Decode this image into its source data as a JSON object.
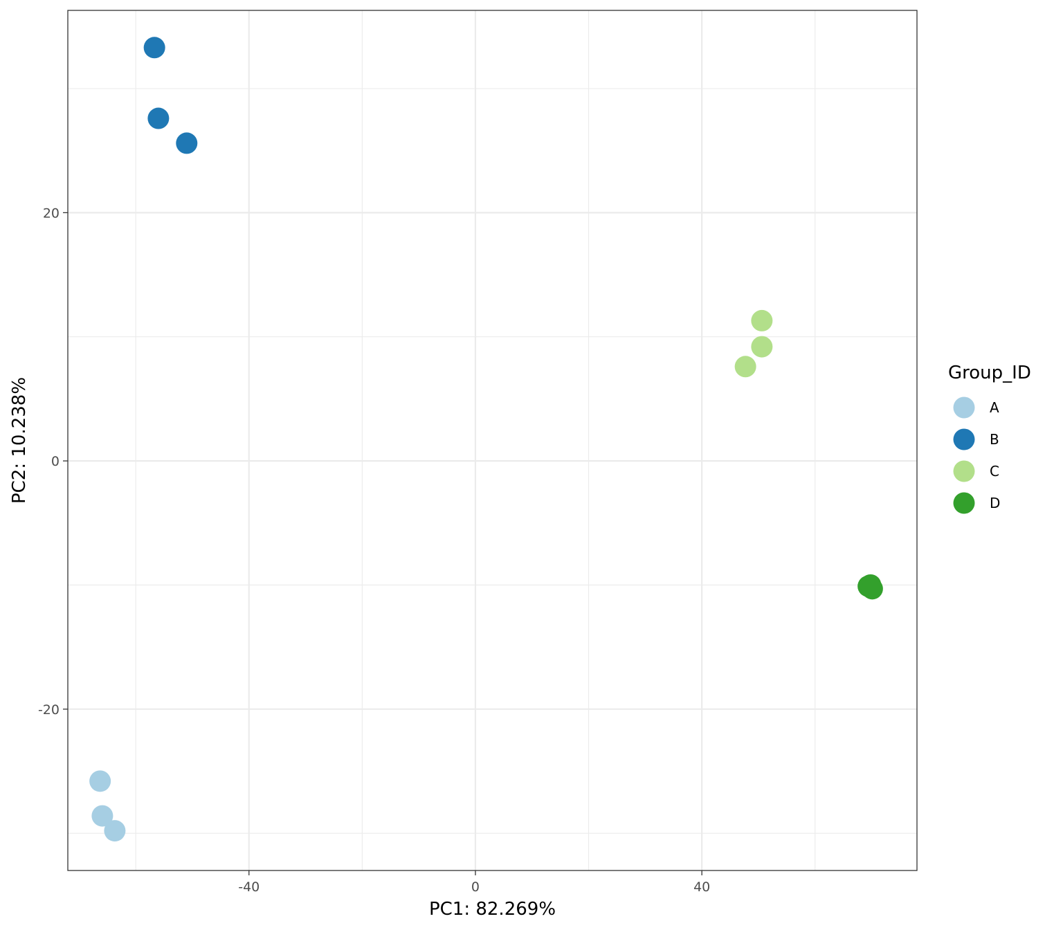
{
  "chart_data": {
    "type": "scatter",
    "xlabel": "PC1: 82.269%",
    "ylabel": "PC2: 10.238%",
    "xlim": [
      -72,
      78
    ],
    "ylim": [
      -33,
      36.3
    ],
    "x_ticks": [
      -40,
      0,
      40
    ],
    "x_tick_labels": [
      "-40",
      "0",
      "40"
    ],
    "y_ticks": [
      -20,
      0,
      20
    ],
    "y_tick_labels": [
      "-20",
      "0",
      "20"
    ],
    "x_minor_grid": [
      -60,
      -20,
      20,
      60
    ],
    "y_minor_grid": [
      -30,
      -10,
      10,
      30
    ],
    "grid": true,
    "legend": {
      "title": "Group_ID",
      "position": "right"
    },
    "series": [
      {
        "name": "A",
        "color": "#a6cee3",
        "points": [
          [
            -66.3,
            -25.8
          ],
          [
            -65.9,
            -28.6
          ],
          [
            -63.7,
            -29.8
          ]
        ]
      },
      {
        "name": "B",
        "color": "#1f78b4",
        "points": [
          [
            -56.7,
            33.3
          ],
          [
            -56.0,
            27.6
          ],
          [
            -51.0,
            25.6
          ]
        ]
      },
      {
        "name": "C",
        "color": "#b2df8a",
        "points": [
          [
            50.6,
            11.3
          ],
          [
            50.6,
            9.2
          ],
          [
            47.7,
            7.6
          ]
        ]
      },
      {
        "name": "D",
        "color": "#33a02c",
        "points": [
          [
            69.4,
            -10.1
          ],
          [
            69.8,
            -10.0
          ],
          [
            70.1,
            -10.3
          ]
        ]
      }
    ]
  }
}
